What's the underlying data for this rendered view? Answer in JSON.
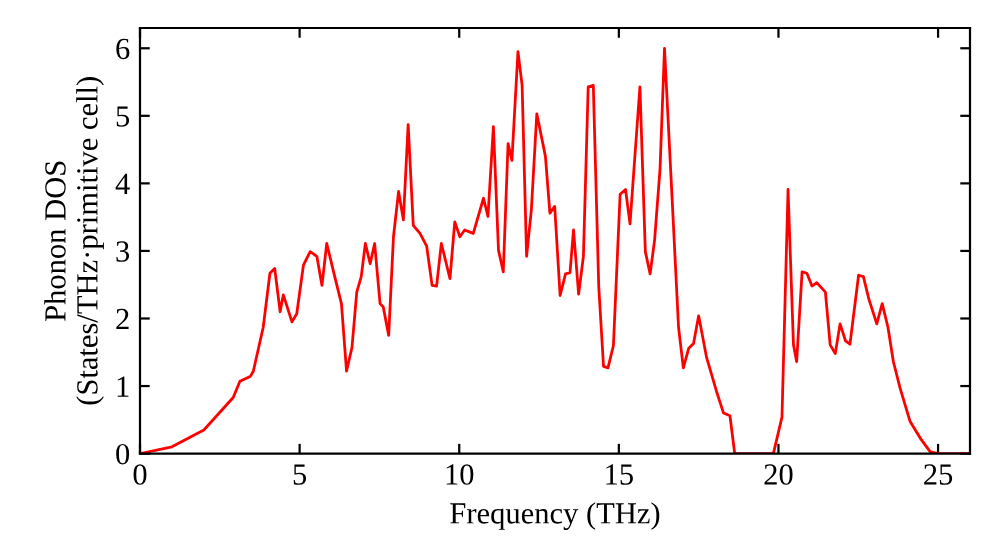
{
  "chart_data": {
    "type": "line",
    "xlabel": "Frequency (THz)",
    "ylabel": "Phonon DOS\n(States/THz·primitive cell)",
    "xlim": [
      0,
      26
    ],
    "ylim": [
      0,
      6.3
    ],
    "xticks": [
      0,
      5,
      10,
      15,
      20,
      25
    ],
    "yticks": [
      0,
      1,
      2,
      3,
      4,
      5,
      6
    ],
    "grid": false,
    "legend": false,
    "marker": "none",
    "line_style": "solid",
    "series": [
      {
        "color": "#ff0000",
        "x": [
          0,
          1,
          2,
          2.92,
          3.13,
          3.45,
          3.55,
          3.86,
          4.07,
          4.22,
          4.39,
          4.49,
          4.76,
          4.91,
          5.12,
          5.33,
          5.54,
          5.7,
          5.85,
          6.1,
          6.31,
          6.47,
          6.64,
          6.79,
          6.93,
          7.06,
          7.21,
          7.35,
          7.52,
          7.62,
          7.79,
          7.94,
          8.1,
          8.25,
          8.4,
          8.56,
          8.77,
          8.98,
          9.15,
          9.29,
          9.44,
          9.71,
          9.86,
          10.02,
          10.17,
          10.44,
          10.76,
          10.9,
          11.07,
          11.23,
          11.38,
          11.53,
          11.65,
          11.84,
          11.97,
          12.11,
          12.26,
          12.43,
          12.7,
          12.84,
          12.99,
          13.16,
          13.33,
          13.47,
          13.58,
          13.74,
          13.89,
          14.04,
          14.2,
          14.37,
          14.52,
          14.66,
          14.83,
          15.04,
          15.21,
          15.35,
          15.66,
          15.83,
          15.98,
          16.12,
          16.29,
          16.43,
          16.67,
          16.87,
          17.02,
          17.19,
          17.34,
          17.5,
          17.75,
          18.06,
          18.28,
          18.48,
          18.63,
          19.84,
          20.11,
          20.3,
          20.47,
          20.57,
          20.74,
          20.89,
          21.05,
          21.2,
          21.47,
          21.62,
          21.78,
          21.93,
          22.1,
          22.24,
          22.51,
          22.66,
          22.83,
          23.08,
          23.25,
          23.43,
          23.6,
          23.81,
          24.12,
          24.44,
          24.75,
          25,
          26
        ],
        "values": [
          0,
          0.1,
          0.35,
          0.83,
          1.07,
          1.14,
          1.22,
          1.87,
          2.67,
          2.74,
          2.1,
          2.35,
          1.95,
          2.07,
          2.79,
          2.99,
          2.92,
          2.49,
          3.11,
          2.62,
          2.22,
          1.22,
          1.57,
          2.39,
          2.62,
          3.11,
          2.81,
          3.11,
          2.22,
          2.17,
          1.75,
          3.21,
          3.88,
          3.46,
          4.87,
          3.38,
          3.26,
          3.07,
          2.49,
          2.48,
          3.11,
          2.59,
          3.43,
          3.21,
          3.31,
          3.26,
          3.78,
          3.51,
          4.84,
          3.01,
          2.69,
          4.59,
          4.34,
          5.95,
          5.45,
          2.92,
          3.61,
          5.03,
          4.4,
          3.56,
          3.66,
          2.34,
          2.66,
          2.68,
          3.31,
          2.36,
          2.92,
          5.43,
          5.45,
          2.48,
          1.29,
          1.27,
          1.6,
          3.84,
          3.91,
          3.4,
          5.43,
          2.99,
          2.66,
          3.16,
          4.21,
          6.0,
          3.76,
          1.87,
          1.27,
          1.56,
          1.63,
          2.04,
          1.42,
          0.92,
          0.6,
          0.56,
          0,
          0,
          0.54,
          3.91,
          1.61,
          1.36,
          2.69,
          2.67,
          2.48,
          2.53,
          2.39,
          1.61,
          1.48,
          1.92,
          1.67,
          1.62,
          2.64,
          2.62,
          2.29,
          1.92,
          2.22,
          1.87,
          1.36,
          0.97,
          0.48,
          0.23,
          0.03,
          0,
          0
        ]
      }
    ]
  }
}
